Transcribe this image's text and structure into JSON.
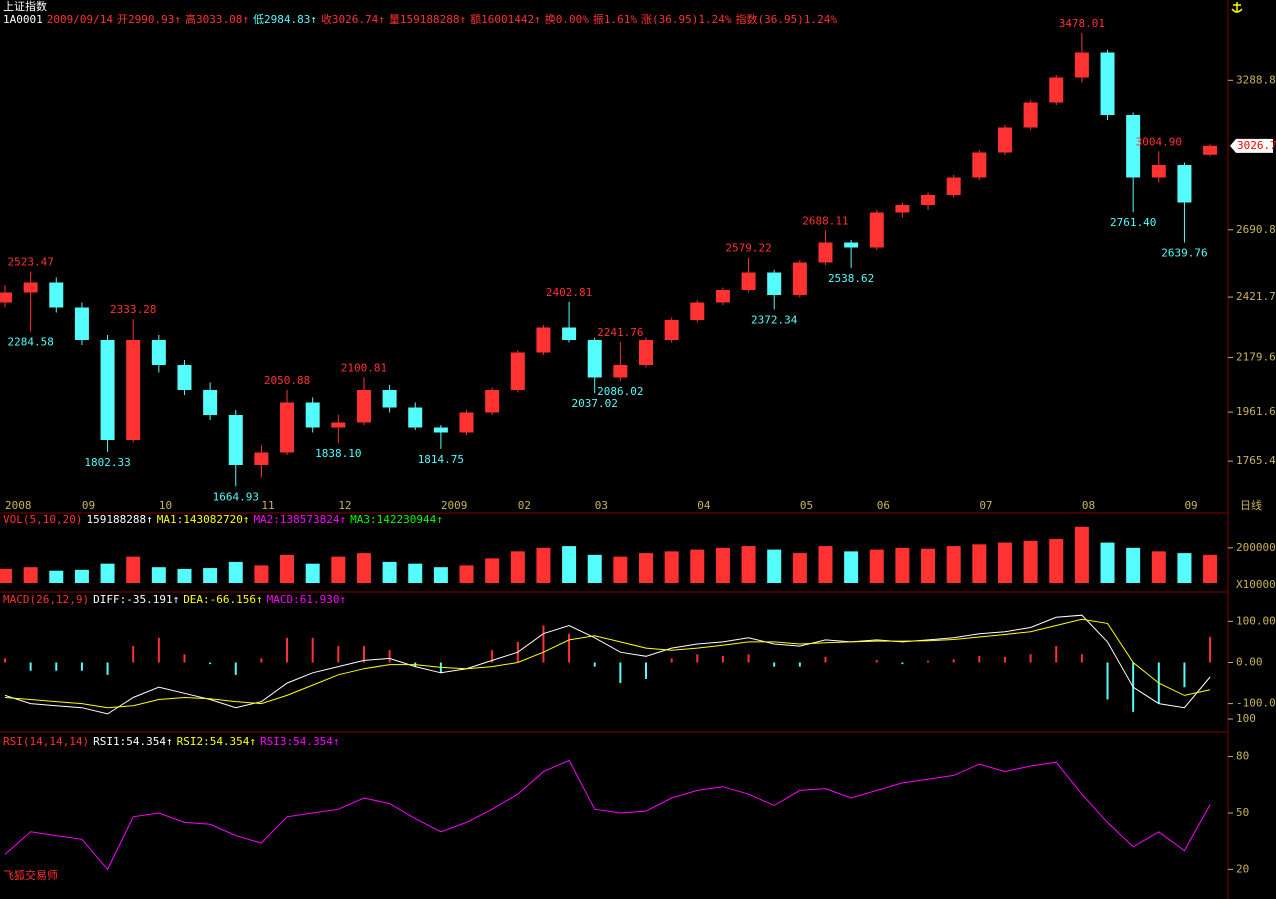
{
  "header": {
    "title": "上证指数",
    "info": [
      {
        "text": "1A0001",
        "color": "#ffffff"
      },
      {
        "text": "2009/09/14",
        "color": "#ff3232"
      },
      {
        "text": "开2990.93↑",
        "color": "#ff3232"
      },
      {
        "text": "高3033.08↑",
        "color": "#ff3232"
      },
      {
        "text": "低2984.83↑",
        "color": "#54fcfc"
      },
      {
        "text": "收3026.74↑",
        "color": "#ff3232"
      },
      {
        "text": "量159188288↑",
        "color": "#ff3232"
      },
      {
        "text": "额16001442↑",
        "color": "#ff3232"
      },
      {
        "text": "换0.00%",
        "color": "#ff3232"
      },
      {
        "text": "振1.61%",
        "color": "#ff3232"
      },
      {
        "text": "涨(36.95)1.24%",
        "color": "#ff3232"
      },
      {
        "text": "指数(36.95)1.24%",
        "color": "#ff3232"
      }
    ]
  },
  "footer": "飞狐交易师",
  "chart_data": [
    {
      "type": "candlestick",
      "up_color": "#ff3232",
      "down_color": "#54fcfc",
      "categories": [
        "2008",
        null,
        null,
        "09",
        null,
        null,
        "10",
        null,
        null,
        null,
        "11",
        null,
        null,
        "12",
        null,
        null,
        null,
        "2009",
        null,
        null,
        "02",
        null,
        null,
        "03",
        null,
        null,
        null,
        "04",
        null,
        null,
        null,
        "05",
        null,
        null,
        "06",
        null,
        null,
        null,
        "07",
        null,
        null,
        null,
        "08",
        null,
        null,
        null,
        "09",
        null
      ],
      "period_label": "日线",
      "open": [
        2400,
        2440,
        2480,
        2380,
        2250,
        1850,
        2250,
        2150,
        2050,
        1950,
        1750,
        1800,
        2000,
        1900,
        1920,
        2050,
        1980,
        1900,
        1880,
        1960,
        2050,
        2200,
        2300,
        2250,
        2100,
        2150,
        2250,
        2330,
        2400,
        2450,
        2520,
        2430,
        2560,
        2640,
        2620,
        2760,
        2790,
        2830,
        2900,
        3000,
        3100,
        3200,
        3300,
        3400,
        3150,
        2900,
        2950,
        2990.93
      ],
      "high": [
        2470,
        2523.47,
        2500,
        2400,
        2270,
        2333.28,
        2270,
        2170,
        2080,
        1970,
        1830,
        2050.88,
        2020,
        1950,
        2100.81,
        2070,
        2000,
        1910,
        1970,
        2060,
        2210,
        2310,
        2402.81,
        2260,
        2241.76,
        2260,
        2340,
        2410,
        2460,
        2579.22,
        2530,
        2570,
        2688.11,
        2650,
        2770,
        2800,
        2840,
        2910,
        3010,
        3110,
        3210,
        3310,
        3478.01,
        3410,
        3160,
        3004.9,
        2960,
        3033.08
      ],
      "low": [
        2380,
        2284.58,
        2360,
        2230,
        1802.33,
        1840,
        2120,
        2030,
        1930,
        1664.93,
        1700,
        1790,
        1880,
        1838.1,
        1910,
        1960,
        1890,
        1814.75,
        1870,
        1950,
        2040,
        2190,
        2240,
        2037.02,
        2086.02,
        2140,
        2240,
        2320,
        2390,
        2440,
        2372.34,
        2420,
        2550,
        2538.62,
        2610,
        2740,
        2770,
        2820,
        2890,
        2990,
        3090,
        3190,
        3280,
        3130,
        2761.4,
        2880,
        2639.76,
        2984.83
      ],
      "close": [
        2440,
        2480,
        2380,
        2250,
        1850,
        2250,
        2150,
        2050,
        1950,
        1750,
        1800,
        2000,
        1900,
        1920,
        2050,
        1980,
        1900,
        1880,
        1960,
        2050,
        2200,
        2300,
        2250,
        2100,
        2150,
        2250,
        2330,
        2400,
        2450,
        2520,
        2430,
        2560,
        2640,
        2620,
        2760,
        2790,
        2830,
        2900,
        3000,
        3100,
        3200,
        3300,
        3400,
        3150,
        2900,
        2950,
        2800,
        3026.74
      ],
      "annotations": [
        {
          "value": 2523.47,
          "label": "2523.47"
        },
        {
          "value": 2284.58,
          "label": "2284.58"
        },
        {
          "value": 2333.28,
          "label": "2333.28"
        },
        {
          "value": 1802.33,
          "label": "1802.33"
        },
        {
          "value": 1664.93,
          "label": "1664.93"
        },
        {
          "value": 2050.88,
          "label": "2050.88"
        },
        {
          "value": 1838.1,
          "label": "1838.10"
        },
        {
          "value": 2100.81,
          "label": "2100.81"
        },
        {
          "value": 1814.75,
          "label": "1814.75"
        },
        {
          "value": 2402.81,
          "label": "2402.81"
        },
        {
          "value": 2037.02,
          "label": "2037.02"
        },
        {
          "value": 2241.76,
          "label": "2241.76"
        },
        {
          "value": 2086.02,
          "label": "2086.02"
        },
        {
          "value": 2579.22,
          "label": "2579.22"
        },
        {
          "value": 2372.34,
          "label": "2372.34"
        },
        {
          "value": 2688.11,
          "label": "2688.11"
        },
        {
          "value": 2538.62,
          "label": "2538.62"
        },
        {
          "value": 3478.01,
          "label": "3478.01"
        },
        {
          "value": 2761.4,
          "label": "2761.40"
        },
        {
          "value": 3004.9,
          "label": "3004.90"
        },
        {
          "value": 2639.76,
          "label": "2639.76"
        }
      ],
      "last_price": 3026.7,
      "ylim": [
        1630,
        3550
      ],
      "yticks": [
        1765.4,
        1961.6,
        2179.6,
        2421.7,
        2690.8,
        3288.8
      ]
    },
    {
      "type": "bar",
      "up_color": "#ff3232",
      "down_color": "#54fcfc",
      "legend": [
        {
          "text": "VOL(5,10,20)",
          "color": "#ff3232"
        },
        {
          "text": "159188288↑",
          "color": "#ffffff"
        },
        {
          "text": "MA1:143082720↑",
          "color": "#ffff00"
        },
        {
          "text": "MA2:138573824↑",
          "color": "#ff00ff"
        },
        {
          "text": "MA3:142230944↑",
          "color": "#00ff00"
        }
      ],
      "values": [
        80000,
        90000,
        70000,
        75000,
        110000,
        150000,
        90000,
        80000,
        85000,
        120000,
        100000,
        160000,
        110000,
        150000,
        170000,
        120000,
        110000,
        90000,
        100000,
        140000,
        180000,
        200000,
        210000,
        160000,
        150000,
        170000,
        180000,
        190000,
        200000,
        210000,
        190000,
        170000,
        210000,
        180000,
        190000,
        200000,
        195000,
        210000,
        220000,
        230000,
        240000,
        250000,
        320000,
        230000,
        200000,
        180000,
        170000,
        160000
      ],
      "unit_label": "X10000",
      "ylim": [
        0,
        330000
      ],
      "yticks": [
        200000
      ]
    },
    {
      "type": "macd",
      "legend": [
        {
          "text": "MACD(26,12,9)",
          "color": "#ff3232"
        },
        {
          "text": "DIFF:-35.191↑",
          "color": "#ffffff"
        },
        {
          "text": "DEA:-66.156↑",
          "color": "#ffff00"
        },
        {
          "text": "MACD:61.930↑",
          "color": "#ff00ff"
        }
      ],
      "series": [
        {
          "name": "MACD",
          "kind": "bar",
          "up_color": "#ff3232",
          "down_color": "#54fcfc",
          "values": [
            10,
            -20,
            -20,
            -20,
            -30,
            40,
            60,
            20,
            -4,
            -30,
            10,
            60,
            60,
            40,
            40,
            30,
            -10,
            -26,
            0,
            30,
            50,
            90,
            70,
            -10,
            -50,
            -40,
            10,
            20,
            16,
            20,
            -10,
            -10,
            14,
            0,
            6,
            -4,
            4,
            8,
            16,
            14,
            20,
            40,
            20,
            -90,
            -120,
            -100,
            -60,
            61.93
          ]
        },
        {
          "name": "DIFF",
          "kind": "line",
          "color": "#ffffff",
          "values": [
            -80,
            -100,
            -105,
            -110,
            -125,
            -85,
            -60,
            -75,
            -90,
            -110,
            -95,
            -50,
            -25,
            -10,
            5,
            10,
            -10,
            -25,
            -15,
            5,
            25,
            70,
            90,
            60,
            25,
            15,
            35,
            45,
            50,
            60,
            45,
            40,
            55,
            50,
            55,
            50,
            55,
            60,
            70,
            75,
            85,
            110,
            115,
            50,
            -60,
            -100,
            -110,
            -35.191
          ]
        },
        {
          "name": "DEA",
          "kind": "line",
          "color": "#ffff00",
          "values": [
            -85,
            -90,
            -95,
            -100,
            -110,
            -105,
            -90,
            -85,
            -88,
            -95,
            -100,
            -80,
            -55,
            -30,
            -15,
            -5,
            -5,
            -12,
            -15,
            -10,
            0,
            25,
            55,
            65,
            50,
            35,
            30,
            35,
            42,
            50,
            50,
            45,
            48,
            50,
            52,
            52,
            53,
            56,
            62,
            68,
            75,
            90,
            105,
            95,
            0,
            -50,
            -80,
            -66.156
          ]
        }
      ],
      "ylim": [
        -152,
        152
      ],
      "yticks": [
        {
          "value": -100,
          "label": "-100.0"
        },
        {
          "value": 0,
          "label": "0.00"
        },
        {
          "value": 100,
          "label": "100.00"
        }
      ]
    },
    {
      "type": "line",
      "legend": [
        {
          "text": "RSI(14,14,14)",
          "color": "#ff3232"
        },
        {
          "text": "RSI1:54.354↑",
          "color": "#ffffff"
        },
        {
          "text": "RSI2:54.354↑",
          "color": "#ffff00"
        },
        {
          "text": "RSI3:54.354↑",
          "color": "#ff00ff"
        }
      ],
      "series": [
        {
          "name": "RSI",
          "color": "#ff00ff",
          "values": [
            28,
            40,
            38,
            36,
            20,
            48,
            50,
            45,
            44,
            38,
            34,
            48,
            50,
            52,
            58,
            55,
            47,
            40,
            45,
            52,
            60,
            72,
            78,
            52,
            50,
            51,
            58,
            62,
            64,
            60,
            54,
            62,
            63,
            58,
            62,
            66,
            68,
            70,
            76,
            72,
            75,
            77,
            60,
            45,
            32,
            40,
            30,
            54.354
          ]
        }
      ],
      "ylim": [
        0,
        100
      ],
      "yticks": [
        20,
        50,
        80,
        100
      ]
    }
  ]
}
